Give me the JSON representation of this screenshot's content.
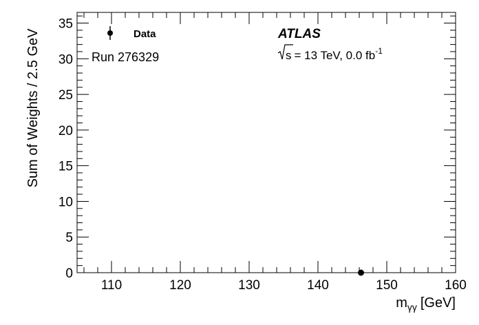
{
  "chart_data": {
    "type": "scatter",
    "title": "",
    "xlabel": {
      "main": "m",
      "sub": "γγ",
      "unit": "[GeV]"
    },
    "ylabel": "Sum of Weights / 2.5 GeV",
    "xlim": [
      105,
      160
    ],
    "ylim": [
      0,
      36.5
    ],
    "x_ticks": [
      110,
      120,
      130,
      140,
      150,
      160
    ],
    "y_ticks": [
      0,
      5,
      10,
      15,
      20,
      25,
      30,
      35
    ],
    "grid": false,
    "legend": {
      "position": "top-left",
      "entries": [
        {
          "label": "Data",
          "marker": "filled-circle"
        }
      ]
    },
    "annotations": {
      "experiment": "ATLAS",
      "energy_prefix": "s",
      "energy_text": "= 13 TeV,  0.0 fb",
      "lumi_exponent": "-1",
      "run": "Run 276329"
    },
    "series": [
      {
        "name": "Data",
        "points": [
          {
            "x": 146.25,
            "y": 0
          }
        ]
      }
    ]
  }
}
